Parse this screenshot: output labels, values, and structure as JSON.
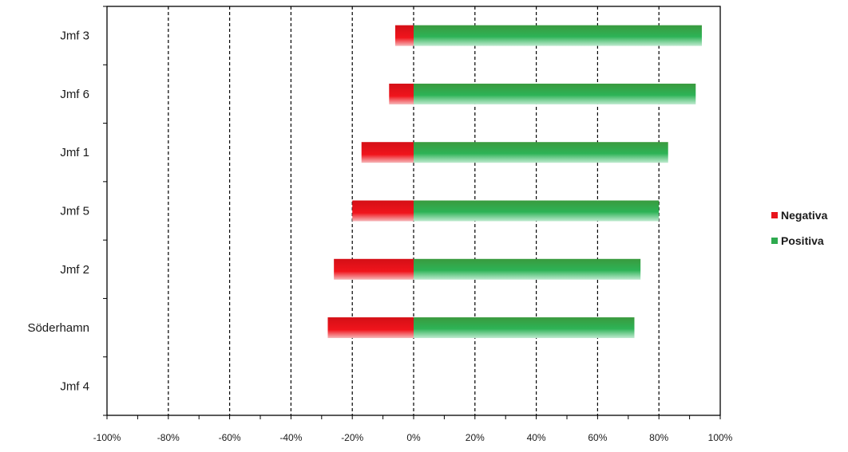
{
  "chart_data": {
    "type": "bar",
    "orientation": "horizontal",
    "stacked": "diverging",
    "categories": [
      "Jmf 3",
      "Jmf 6",
      "Jmf 1",
      "Jmf 5",
      "Jmf 2",
      "Söderhamn",
      "Jmf 4"
    ],
    "series": [
      {
        "name": "Negativa",
        "color": "#e8141c",
        "values": [
          -6,
          -8,
          -17,
          -20,
          -26,
          -28,
          0
        ]
      },
      {
        "name": "Positiva",
        "color": "#2eaa4f",
        "values": [
          94,
          92,
          83,
          80,
          74,
          72,
          0
        ]
      }
    ],
    "xlim": [
      -100,
      100
    ],
    "xticks": [
      "-100%",
      "-80%",
      "-60%",
      "-40%",
      "-20%",
      "0%",
      "20%",
      "40%",
      "60%",
      "80%",
      "100%"
    ],
    "grid": "vertical dashed",
    "legend_position": "right"
  }
}
